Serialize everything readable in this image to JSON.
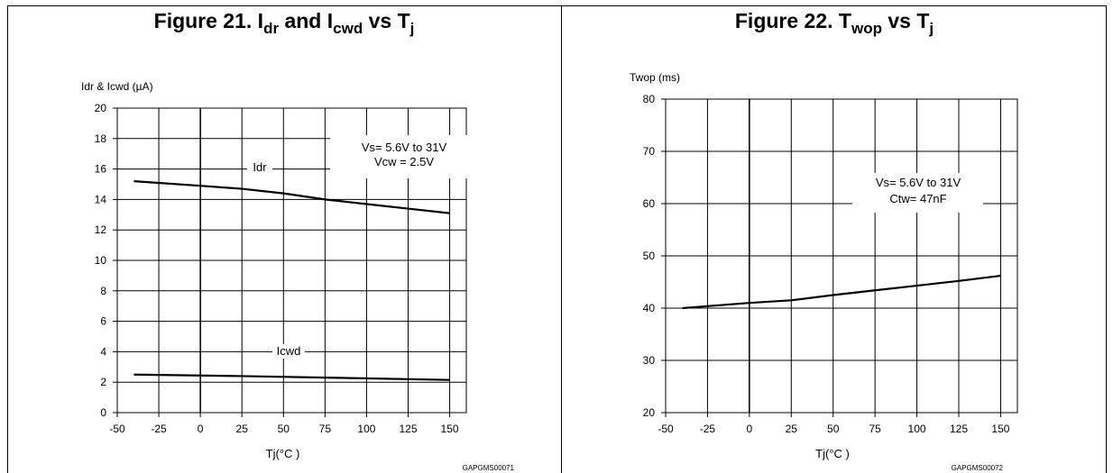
{
  "charts": [
    {
      "title_main": "Figure 21. I",
      "title_sub1": "dr",
      "title_mid": " and I",
      "title_sub2": "cwd",
      "title_mid2": " vs T",
      "title_sub3": "j",
      "code": "GAPGMS00071"
    },
    {
      "title_main": "Figure 22. T",
      "title_sub1": "wop",
      "title_mid": " vs T",
      "title_sub2": "j",
      "code": "GAPGMS00072"
    }
  ],
  "chart_data": [
    {
      "type": "line",
      "title": "Figure 21. Idr and Icwd vs Tj",
      "ylabel": "Idr & Icwd (µA)",
      "xlabel": "Tj(°C )",
      "xlim": [
        -50,
        160
      ],
      "ylim": [
        0,
        20
      ],
      "xticks": [
        -50,
        -25,
        0,
        25,
        50,
        75,
        100,
        125,
        150
      ],
      "yticks": [
        0,
        2,
        4,
        6,
        8,
        10,
        12,
        14,
        16,
        18,
        20
      ],
      "grid": true,
      "annotation": [
        "Vs= 5.6V to 31V",
        "Vcw = 2.5V"
      ],
      "series": [
        {
          "name": "Idr",
          "x": [
            -40,
            0,
            25,
            50,
            75,
            100,
            125,
            150
          ],
          "y": [
            15.2,
            14.9,
            14.7,
            14.4,
            14.0,
            13.7,
            13.4,
            13.1
          ]
        },
        {
          "name": "Icwd",
          "x": [
            -40,
            25,
            75,
            150
          ],
          "y": [
            2.5,
            2.4,
            2.3,
            2.15
          ]
        }
      ]
    },
    {
      "type": "line",
      "title": "Figure 22. Twop vs Tj",
      "ylabel": "Twop (ms)",
      "xlabel": "Tj(°C )",
      "xlim": [
        -50,
        160
      ],
      "ylim": [
        20,
        80
      ],
      "xticks": [
        -50,
        -25,
        0,
        25,
        50,
        75,
        100,
        125,
        150
      ],
      "yticks": [
        20,
        30,
        40,
        50,
        60,
        70,
        80
      ],
      "grid": true,
      "annotation": [
        "Vs= 5.6V to 31V",
        "Ctw= 47nF"
      ],
      "series": [
        {
          "x": [
            -40,
            0,
            25,
            50,
            75,
            100,
            125,
            150
          ],
          "y": [
            40.0,
            41.0,
            41.5,
            42.5,
            43.4,
            44.3,
            45.2,
            46.2
          ]
        }
      ]
    }
  ]
}
